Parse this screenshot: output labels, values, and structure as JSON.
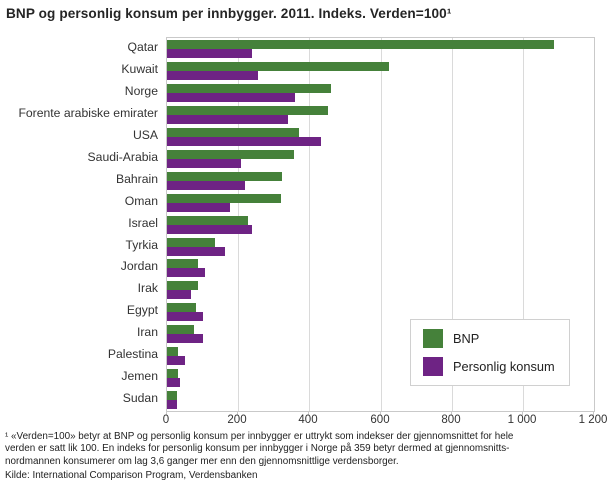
{
  "title": "BNP og personlig konsum per innbygger. 2011. Indeks. Verden=100¹",
  "chart_data": {
    "type": "bar",
    "orientation": "horizontal",
    "title": "BNP og personlig konsum per innbygger. 2011. Indeks. Verden=100",
    "xlabel": "",
    "ylabel": "",
    "xlim": [
      0,
      1200
    ],
    "x_ticks": [
      0,
      200,
      400,
      600,
      800,
      1000,
      1200
    ],
    "x_tick_labels": [
      "0",
      "200",
      "400",
      "600",
      "800",
      "1 000",
      "1 200"
    ],
    "grid": true,
    "legend_position": "inside-right-bottom",
    "categories": [
      "Qatar",
      "Kuwait",
      "Norge",
      "Forente arabiske emirater",
      "USA",
      "Saudi-Arabia",
      "Bahrain",
      "Oman",
      "Israel",
      "Tyrkia",
      "Jordan",
      "Irak",
      "Egypt",
      "Iran",
      "Palestina",
      "Jemen",
      "Sudan"
    ],
    "series": [
      {
        "name": "BNP",
        "color": "#45813A",
        "values": [
          1088,
          625,
          461,
          453,
          371,
          358,
          323,
          319,
          227,
          135,
          88,
          87,
          81,
          75,
          30,
          30,
          29
        ]
      },
      {
        "name": "Personlig konsum",
        "color": "#6E2384",
        "values": [
          239,
          256,
          359,
          341,
          433,
          207,
          218,
          178,
          239,
          162,
          108,
          66,
          101,
          101,
          51,
          37,
          28
        ]
      }
    ]
  },
  "legend": {
    "items": [
      {
        "label": "BNP",
        "color": "#45813A"
      },
      {
        "label": "Personlig konsum",
        "color": "#6E2384"
      }
    ]
  },
  "footnote_lines": [
    "¹ «Verden=100» betyr at BNP og personlig konsum per innbygger er uttrykt som indekser der gjennomsnittet for hele",
    "verden er satt lik 100. En indeks for personlig konsum per innbygger i Norge på 359 betyr dermed at gjennomsnitts-",
    "nordmannen konsumerer om lag 3,6 ganger mer enn den gjennomsnittlige verdensborger."
  ],
  "source": "Kilde: International Comparison Program, Verdensbanken"
}
